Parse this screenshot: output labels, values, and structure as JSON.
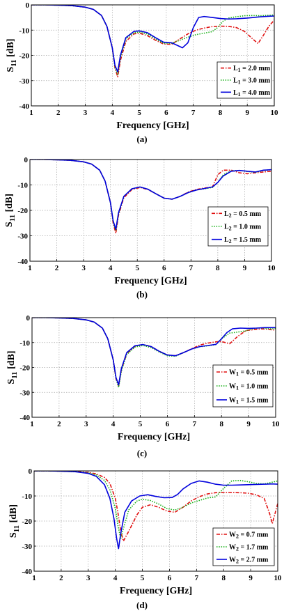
{
  "chart_data": [
    {
      "type": "line",
      "panel_label": "(a)",
      "xlabel": "Frequency [GHz]",
      "ylabel": "S11 [dB]",
      "xlim": [
        1,
        10
      ],
      "ylim": [
        -40,
        0
      ],
      "xticks": [
        1,
        2,
        3,
        4,
        5,
        6,
        7,
        8,
        9,
        10
      ],
      "yticks": [
        0,
        -10,
        -20,
        -30,
        -40
      ],
      "grid": true,
      "legend_position": "center-right",
      "series": [
        {
          "name": "L1 = 2.0 mm",
          "legend_base": "L",
          "legend_sub": "1",
          "legend_rest": " = 2.0 mm",
          "color": "#e01010",
          "style": "dashdot",
          "x": [
            1,
            1.5,
            2,
            2.5,
            3,
            3.3,
            3.6,
            3.8,
            4,
            4.1,
            4.2,
            4.3,
            4.5,
            4.8,
            5,
            5.3,
            5.6,
            5.9,
            6.2,
            6.5,
            6.8,
            7.1,
            7.4,
            7.7,
            8,
            8.3,
            8.6,
            8.9,
            9.2,
            9.4,
            9.6,
            9.8,
            10
          ],
          "y": [
            0,
            0,
            -0.1,
            -0.3,
            -0.9,
            -1.8,
            -4.2,
            -8.5,
            -17,
            -25,
            -28.5,
            -22,
            -14.5,
            -11.5,
            -11.2,
            -12.2,
            -14,
            -15.5,
            -15.6,
            -13.5,
            -11.5,
            -10,
            -9.2,
            -8.6,
            -8.4,
            -8.5,
            -9,
            -10.5,
            -13.5,
            -15.3,
            -12,
            -8.5,
            -6
          ]
        },
        {
          "name": "L1 = 3.0 mm",
          "legend_base": "L",
          "legend_sub": "1",
          "legend_rest": " = 3.0 mm",
          "color": "#18b018",
          "style": "dotted",
          "x": [
            1,
            1.5,
            2,
            2.5,
            3,
            3.3,
            3.6,
            3.8,
            4,
            4.1,
            4.2,
            4.3,
            4.5,
            4.8,
            5,
            5.3,
            5.6,
            5.9,
            6.2,
            6.5,
            6.8,
            7.1,
            7.4,
            7.7,
            7.9,
            8.1,
            8.3,
            8.6,
            8.9,
            9.2,
            9.5,
            9.8,
            10
          ],
          "y": [
            0,
            0,
            -0.1,
            -0.3,
            -0.9,
            -1.8,
            -4.2,
            -8.5,
            -17,
            -25,
            -27.5,
            -21,
            -13.5,
            -11,
            -10.8,
            -11.5,
            -13.5,
            -15.2,
            -15.2,
            -14,
            -12.8,
            -11.8,
            -11.2,
            -10.6,
            -9,
            -6.5,
            -5.2,
            -4.7,
            -4.3,
            -4.2,
            -4.3,
            -4.1,
            -4
          ]
        },
        {
          "name": "L1 = 4.0 mm",
          "legend_base": "L",
          "legend_sub": "1",
          "legend_rest": " = 4.0 mm",
          "color": "#0000dd",
          "style": "solid",
          "x": [
            1,
            1.5,
            2,
            2.5,
            3,
            3.3,
            3.6,
            3.8,
            4,
            4.1,
            4.2,
            4.3,
            4.5,
            4.8,
            5,
            5.3,
            5.6,
            5.9,
            6.2,
            6.4,
            6.6,
            6.8,
            7,
            7.2,
            7.4,
            7.7,
            8,
            8.3,
            8.6,
            9,
            9.4,
            9.8,
            10
          ],
          "y": [
            0,
            0,
            -0.1,
            -0.3,
            -0.9,
            -1.8,
            -4.2,
            -8.5,
            -17,
            -24,
            -26.5,
            -20,
            -13,
            -10.5,
            -10.3,
            -11,
            -13,
            -14.8,
            -15,
            -16,
            -17,
            -15,
            -9,
            -5,
            -4.6,
            -5,
            -5.4,
            -5.6,
            -5.5,
            -5.2,
            -4.8,
            -4.5,
            -4.4
          ]
        }
      ]
    },
    {
      "type": "line",
      "panel_label": "(b)",
      "xlabel": "Frequency [GHz]",
      "ylabel": "S11 [dB]",
      "xlim": [
        1,
        10
      ],
      "ylim": [
        -40,
        0
      ],
      "xticks": [
        1,
        2,
        3,
        4,
        5,
        6,
        7,
        8,
        9,
        10
      ],
      "yticks": [
        0,
        -10,
        -20,
        -30,
        -40
      ],
      "grid": true,
      "legend_position": "center-right",
      "series": [
        {
          "name": "L2 = 0.5 mm",
          "legend_base": "L",
          "legend_sub": "2",
          "legend_rest": " = 0.5 mm",
          "color": "#e01010",
          "style": "dashdot",
          "x": [
            1,
            1.5,
            2,
            2.5,
            3,
            3.3,
            3.6,
            3.8,
            4,
            4.1,
            4.2,
            4.3,
            4.5,
            4.8,
            5.1,
            5.4,
            5.7,
            6,
            6.3,
            6.6,
            6.9,
            7.2,
            7.5,
            7.8,
            8,
            8.2,
            8.5,
            8.8,
            9.1,
            9.4,
            9.7,
            10
          ],
          "y": [
            0,
            0,
            -0.1,
            -0.3,
            -0.9,
            -1.8,
            -4.2,
            -8.5,
            -17,
            -25,
            -29,
            -22,
            -15,
            -11.8,
            -11,
            -11.8,
            -13.5,
            -15.2,
            -15.6,
            -14.5,
            -12.8,
            -11.8,
            -11.2,
            -10.8,
            -6,
            -4.2,
            -4.2,
            -5.2,
            -5.6,
            -5.2,
            -4.9,
            -4.6
          ]
        },
        {
          "name": "L2 = 1.0 mm",
          "legend_base": "L",
          "legend_sub": "2",
          "legend_rest": " = 1.0 mm",
          "color": "#18b018",
          "style": "dotted",
          "x": [
            1,
            1.5,
            2,
            2.5,
            3,
            3.3,
            3.6,
            3.8,
            4,
            4.1,
            4.2,
            4.3,
            4.5,
            4.8,
            5.1,
            5.4,
            5.7,
            6,
            6.3,
            6.6,
            6.9,
            7.2,
            7.5,
            7.8,
            8,
            8.2,
            8.5,
            8.8,
            9.1,
            9.4,
            9.7,
            10
          ],
          "y": [
            0,
            0,
            -0.1,
            -0.3,
            -0.9,
            -1.8,
            -4.2,
            -8.5,
            -17,
            -24.5,
            -28,
            -21.5,
            -14.5,
            -11.5,
            -10.8,
            -11.7,
            -13.5,
            -15.2,
            -15.6,
            -14.5,
            -13,
            -12,
            -11.5,
            -11,
            -9,
            -6,
            -4.5,
            -4.3,
            -4.7,
            -5,
            -4.3,
            -4
          ]
        },
        {
          "name": "L2 = 1.5 mm",
          "legend_base": "L",
          "legend_sub": "2",
          "legend_rest": " = 1.5 mm",
          "color": "#0000dd",
          "style": "solid",
          "x": [
            1,
            1.5,
            2,
            2.5,
            3,
            3.3,
            3.6,
            3.8,
            4,
            4.1,
            4.2,
            4.3,
            4.5,
            4.8,
            5.1,
            5.4,
            5.7,
            6,
            6.3,
            6.6,
            6.9,
            7.2,
            7.5,
            7.8,
            8,
            8.2,
            8.5,
            8.8,
            9.1,
            9.4,
            9.7,
            10
          ],
          "y": [
            0,
            0,
            -0.1,
            -0.3,
            -0.9,
            -1.8,
            -4.2,
            -8.5,
            -17,
            -24,
            -27.5,
            -21,
            -14.5,
            -11.5,
            -10.8,
            -11.7,
            -13.5,
            -15.2,
            -15.6,
            -14.5,
            -13,
            -12,
            -11.4,
            -10.8,
            -9,
            -6.5,
            -4.6,
            -4.3,
            -4.6,
            -4.9,
            -4.2,
            -4
          ]
        }
      ]
    },
    {
      "type": "line",
      "panel_label": "(c)",
      "xlabel": "Frequency [GHz]",
      "ylabel": "S11 [dB]",
      "xlim": [
        1,
        10
      ],
      "ylim": [
        -40,
        0
      ],
      "xticks": [
        1,
        2,
        3,
        4,
        5,
        6,
        7,
        8,
        9,
        10
      ],
      "yticks": [
        0,
        -10,
        -20,
        -30,
        -40
      ],
      "grid": true,
      "legend_position": "center-right",
      "series": [
        {
          "name": "W1 = 0.5 mm",
          "legend_base": "W",
          "legend_sub": "1",
          "legend_rest": " = 0.5 mm",
          "color": "#e01010",
          "style": "dashdot",
          "x": [
            1,
            1.5,
            2,
            2.5,
            3,
            3.3,
            3.6,
            3.8,
            4,
            4.1,
            4.2,
            4.3,
            4.5,
            4.8,
            5.1,
            5.4,
            5.7,
            6,
            6.3,
            6.6,
            6.9,
            7.2,
            7.5,
            7.8,
            8,
            8.3,
            8.6,
            8.9,
            9.2,
            9.5,
            9.8,
            10
          ],
          "y": [
            0,
            0,
            -0.1,
            -0.3,
            -0.9,
            -1.8,
            -4.2,
            -8.5,
            -17,
            -24.5,
            -27.5,
            -21,
            -14.5,
            -11.5,
            -10.8,
            -11.6,
            -13.5,
            -15,
            -15.3,
            -14,
            -12.5,
            -11,
            -10.2,
            -9.7,
            -9.6,
            -10.5,
            -7.5,
            -5.2,
            -4.8,
            -4.5,
            -4.8,
            -5
          ]
        },
        {
          "name": "W1 = 1.0 mm",
          "legend_base": "W",
          "legend_sub": "1",
          "legend_rest": " = 1.0 mm",
          "color": "#18b018",
          "style": "dotted",
          "x": [
            1,
            1.5,
            2,
            2.5,
            3,
            3.3,
            3.6,
            3.8,
            4,
            4.1,
            4.2,
            4.3,
            4.5,
            4.8,
            5.1,
            5.4,
            5.7,
            6,
            6.3,
            6.6,
            6.9,
            7.2,
            7.5,
            7.8,
            8,
            8.3,
            8.6,
            8.9,
            9.2,
            9.5,
            9.8,
            10
          ],
          "y": [
            0,
            0,
            -0.1,
            -0.3,
            -0.9,
            -1.8,
            -4.2,
            -8.5,
            -17,
            -24.5,
            -28,
            -21.5,
            -14.8,
            -11.8,
            -11.2,
            -12,
            -13.8,
            -15.3,
            -15.5,
            -14,
            -12.6,
            -11.7,
            -11.3,
            -10.8,
            -8.5,
            -6.2,
            -5.8,
            -5.3,
            -4.3,
            -4.1,
            -4.5,
            -4.4
          ]
        },
        {
          "name": "W1 = 1.5 mm",
          "legend_base": "W",
          "legend_sub": "1",
          "legend_rest": " = 1.5 mm",
          "color": "#0000dd",
          "style": "solid",
          "x": [
            1,
            1.5,
            2,
            2.5,
            3,
            3.3,
            3.6,
            3.8,
            4,
            4.1,
            4.2,
            4.3,
            4.5,
            4.8,
            5.1,
            5.4,
            5.7,
            6,
            6.3,
            6.6,
            6.9,
            7.2,
            7.5,
            7.8,
            8,
            8.2,
            8.4,
            8.7,
            9,
            9.3,
            9.6,
            10
          ],
          "y": [
            0,
            0,
            -0.1,
            -0.3,
            -0.9,
            -1.8,
            -4.2,
            -8.5,
            -17,
            -24,
            -27,
            -20.5,
            -14,
            -11.3,
            -10.8,
            -11.6,
            -13.5,
            -15,
            -15.3,
            -14,
            -12.6,
            -11.6,
            -11.2,
            -10.7,
            -8.5,
            -6,
            -4.5,
            -4.2,
            -4.3,
            -4.2,
            -4,
            -4
          ]
        }
      ]
    },
    {
      "type": "line",
      "panel_label": "(d)",
      "xlabel": "Frequency [GHz]",
      "ylabel": "S11 [dB]",
      "xlim": [
        1,
        10
      ],
      "ylim": [
        -40,
        0
      ],
      "xticks": [
        1,
        2,
        3,
        4,
        5,
        6,
        7,
        8,
        9,
        10
      ],
      "yticks": [
        0,
        -10,
        -20,
        -30,
        -40
      ],
      "grid": true,
      "legend_position": "bottom-right",
      "series": [
        {
          "name": "W2 = 0.7 mm",
          "legend_base": "W",
          "legend_sub": "2",
          "legend_rest": " = 0.7 mm",
          "color": "#e01010",
          "style": "dashdot",
          "x": [
            1,
            1.5,
            2,
            2.5,
            3,
            3.3,
            3.6,
            3.8,
            4,
            4.1,
            4.2,
            4.3,
            4.5,
            4.8,
            5,
            5.3,
            5.6,
            5.9,
            6.2,
            6.5,
            6.8,
            7.1,
            7.4,
            7.7,
            8,
            8.3,
            8.6,
            8.9,
            9.2,
            9.5,
            9.7,
            9.8,
            9.9,
            10
          ],
          "y": [
            0,
            0,
            -0.1,
            -0.2,
            -0.6,
            -1.2,
            -2.6,
            -5,
            -11,
            -17,
            -24,
            -28,
            -24,
            -17.5,
            -14.5,
            -13.5,
            -14.5,
            -16,
            -16.5,
            -14.5,
            -12,
            -10.3,
            -9.2,
            -8.7,
            -8.6,
            -8.6,
            -8.7,
            -8.9,
            -9.5,
            -11,
            -17,
            -21,
            -17,
            -13
          ]
        },
        {
          "name": "W2 = 1.7 mm",
          "legend_base": "W",
          "legend_sub": "2",
          "legend_rest": " = 1.7 mm",
          "color": "#18b018",
          "style": "dotted",
          "x": [
            1,
            1.5,
            2,
            2.5,
            3,
            3.3,
            3.6,
            3.8,
            4,
            4.1,
            4.2,
            4.3,
            4.5,
            4.8,
            5,
            5.3,
            5.6,
            5.9,
            6.2,
            6.5,
            6.8,
            7.1,
            7.4,
            7.7,
            8,
            8.3,
            8.6,
            8.9,
            9.2,
            9.5,
            9.8,
            10
          ],
          "y": [
            0,
            0,
            -0.1,
            -0.3,
            -0.8,
            -1.6,
            -3.8,
            -7.5,
            -15,
            -22,
            -27,
            -23,
            -15.5,
            -12,
            -11.3,
            -11.8,
            -13.2,
            -15,
            -15.6,
            -14.5,
            -12.8,
            -11.8,
            -10.8,
            -10.4,
            -7,
            -4,
            -3.8,
            -4.3,
            -5,
            -5.2,
            -4.5,
            -4
          ]
        },
        {
          "name": "W2 = 2.7 mm",
          "legend_base": "W",
          "legend_sub": "2",
          "legend_rest": " = 2.7 mm",
          "color": "#0000dd",
          "style": "solid",
          "x": [
            1,
            1.5,
            2,
            2.5,
            3,
            3.3,
            3.6,
            3.8,
            3.95,
            4.05,
            4.12,
            4.2,
            4.35,
            4.6,
            4.9,
            5.2,
            5.5,
            5.8,
            6.1,
            6.3,
            6.5,
            6.8,
            7.1,
            7.4,
            7.7,
            8,
            8.3,
            8.6,
            8.9,
            9.2,
            9.5,
            9.8,
            10
          ],
          "y": [
            0,
            0,
            -0.1,
            -0.3,
            -1,
            -2.2,
            -5.5,
            -11,
            -19,
            -27,
            -31,
            -25,
            -16.5,
            -12,
            -10,
            -9.5,
            -10.2,
            -10.7,
            -10.6,
            -9.4,
            -7.2,
            -5,
            -4,
            -4.5,
            -5.3,
            -5.7,
            -5.7,
            -5.6,
            -5.5,
            -5.4,
            -5.3,
            -5.2,
            -5.3
          ]
        }
      ]
    }
  ]
}
